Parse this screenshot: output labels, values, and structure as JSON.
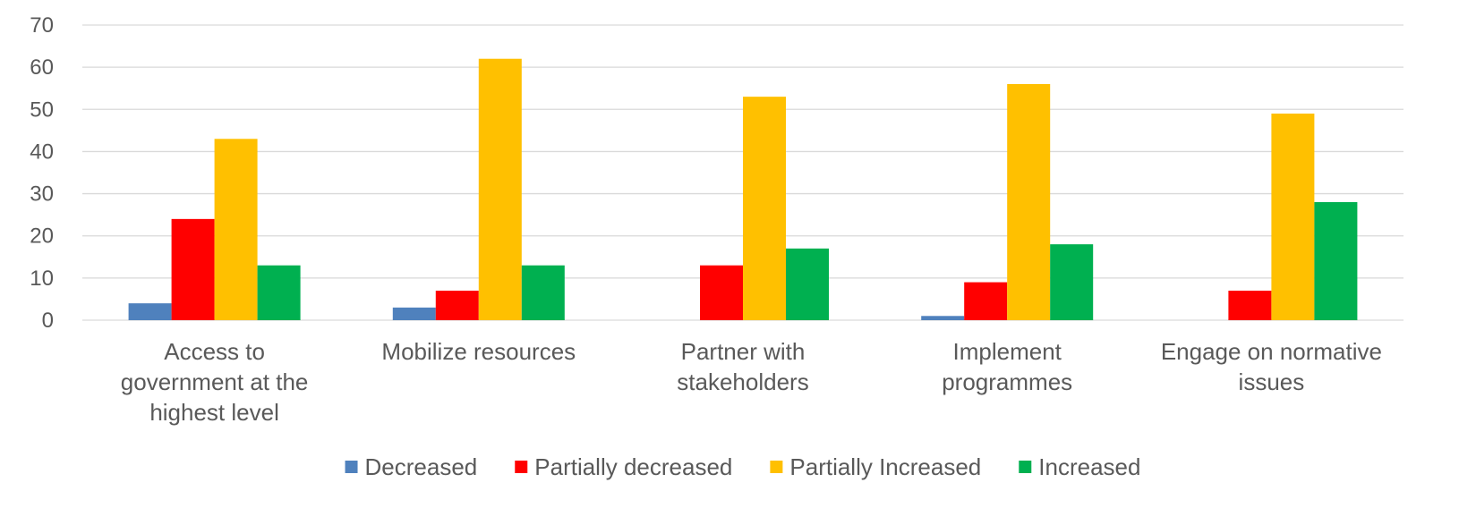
{
  "chart_data": {
    "type": "bar",
    "title": "",
    "xlabel": "",
    "ylabel": "",
    "ylim": [
      0,
      70
    ],
    "yticks": [
      0,
      10,
      20,
      30,
      40,
      50,
      60,
      70
    ],
    "grid": true,
    "legend_position": "bottom",
    "categories": [
      [
        "Access to",
        "government at the",
        "highest level"
      ],
      [
        "Mobilize resources"
      ],
      [
        "Partner with",
        "stakeholders"
      ],
      [
        "Implement",
        "programmes"
      ],
      [
        "Engage on normative",
        "issues"
      ]
    ],
    "series": [
      {
        "name": "Decreased",
        "color": "#4F81BD",
        "values": [
          4,
          3,
          0,
          1,
          0
        ]
      },
      {
        "name": "Partially decreased",
        "color": "#FF0000",
        "values": [
          24,
          7,
          13,
          9,
          7
        ]
      },
      {
        "name": "Partially Increased",
        "color": "#FFC000",
        "values": [
          43,
          62,
          53,
          56,
          49
        ]
      },
      {
        "name": "Increased",
        "color": "#00B050",
        "values": [
          13,
          13,
          17,
          18,
          28
        ]
      }
    ]
  },
  "colors": {
    "grid": "#D9D9D9",
    "text": "#595959"
  }
}
